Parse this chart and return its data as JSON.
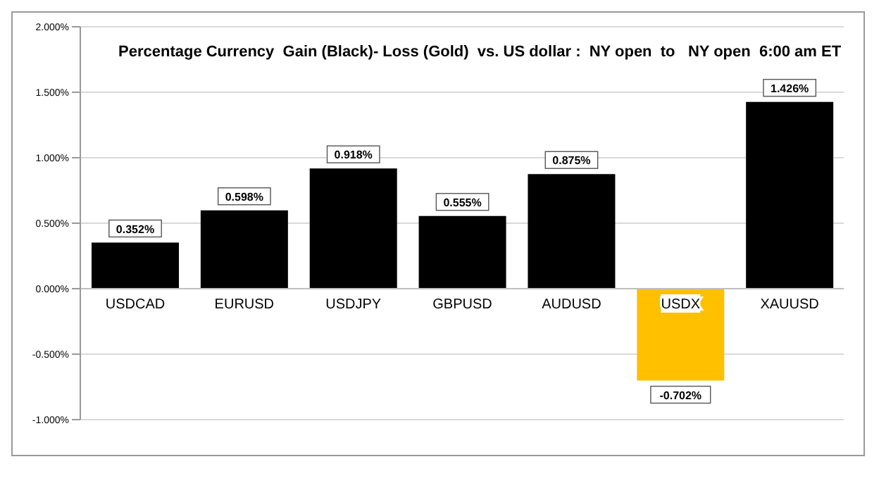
{
  "chart_data": {
    "type": "bar",
    "title": "Percentage Currency  Gain (Black)- Loss (Gold)  vs. US dollar :  NY open  to   NY open  6:00 am ET",
    "categories": [
      "USDCAD",
      "EURUSD",
      "USDJPY",
      "GBPUSD",
      "AUDUSD",
      "USDX",
      "XAUUSD"
    ],
    "values": [
      0.352,
      0.598,
      0.918,
      0.555,
      0.875,
      -0.702,
      1.426
    ],
    "value_labels": [
      "0.352%",
      "0.598%",
      "0.918%",
      "0.555%",
      "0.875%",
      "-0.702%",
      "1.426%"
    ],
    "colors": [
      "#000000",
      "#000000",
      "#000000",
      "#000000",
      "#000000",
      "#ffc000",
      "#000000"
    ],
    "ylim": [
      -1,
      2
    ],
    "yticks": [
      {
        "value": -1,
        "label": "-1.000%"
      },
      {
        "value": -0.5,
        "label": "-0.500%"
      },
      {
        "value": 0,
        "label": "0.000%"
      },
      {
        "value": 0.5,
        "label": "0.500%"
      },
      {
        "value": 1,
        "label": "1.000%"
      },
      {
        "value": 1.5,
        "label": "1.500%"
      },
      {
        "value": 2,
        "label": "2.000%"
      }
    ],
    "grid": "y"
  }
}
